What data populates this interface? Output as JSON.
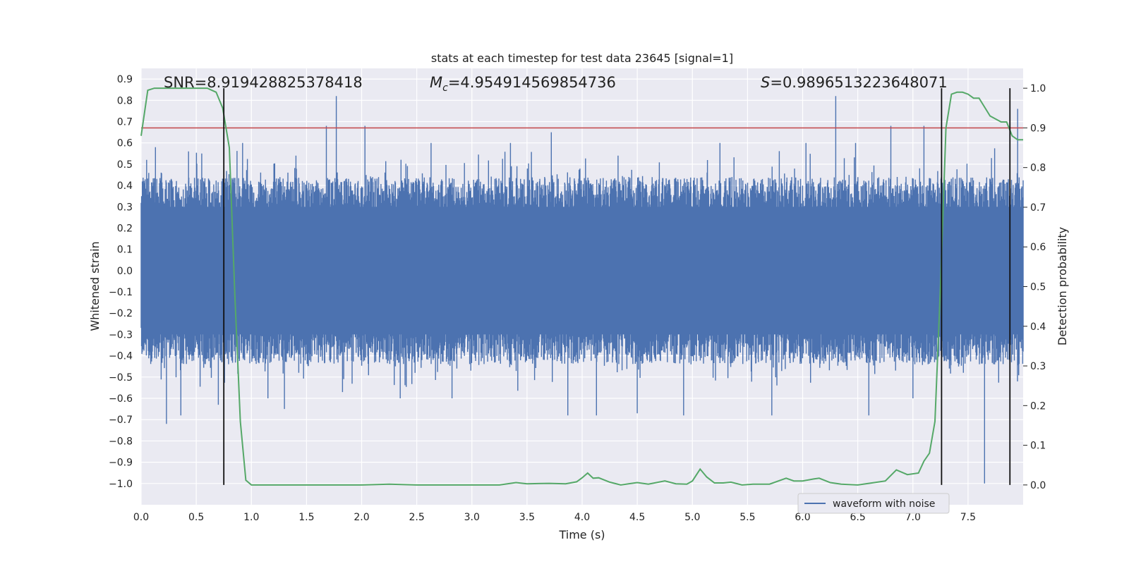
{
  "chart_data": {
    "type": "line",
    "title": "stats at each timestep for test data 23645 [signal=1]",
    "xlabel": "Time (s)",
    "ylabel_left": "Whitened strain",
    "ylabel_right": "Detection probability",
    "xlim": [
      0.0,
      8.0
    ],
    "ylim_left": [
      -1.1,
      0.95
    ],
    "ylim_right": [
      -0.05,
      1.05
    ],
    "x_ticks": [
      "0.0",
      "0.5",
      "1.0",
      "1.5",
      "2.0",
      "2.5",
      "3.0",
      "3.5",
      "4.0",
      "4.5",
      "5.0",
      "5.5",
      "6.0",
      "6.5",
      "7.0",
      "7.5"
    ],
    "x_tick_values": [
      0.0,
      0.5,
      1.0,
      1.5,
      2.0,
      2.5,
      3.0,
      3.5,
      4.0,
      4.5,
      5.0,
      5.5,
      6.0,
      6.5,
      7.0,
      7.5
    ],
    "y_left_ticks": [
      "0.9",
      "0.8",
      "0.7",
      "0.6",
      "0.5",
      "0.4",
      "0.3",
      "0.2",
      "0.1",
      "0.0",
      "−0.1",
      "−0.2",
      "−0.3",
      "−0.4",
      "−0.5",
      "−0.6",
      "−0.7",
      "−0.8",
      "−0.9",
      "−1.0"
    ],
    "y_left_tick_values": [
      0.9,
      0.8,
      0.7,
      0.6,
      0.5,
      0.4,
      0.3,
      0.2,
      0.1,
      0.0,
      -0.1,
      -0.2,
      -0.3,
      -0.4,
      -0.5,
      -0.6,
      -0.7,
      -0.8,
      -0.9,
      -1.0
    ],
    "y_right_ticks": [
      "1.0",
      "0.9",
      "0.8",
      "0.7",
      "0.6",
      "0.5",
      "0.4",
      "0.3",
      "0.2",
      "0.1",
      "0.0"
    ],
    "y_right_tick_values": [
      1.0,
      0.9,
      0.8,
      0.7,
      0.6,
      0.5,
      0.4,
      0.3,
      0.2,
      0.1,
      0.0
    ],
    "grid": true,
    "legend_location": "lower right",
    "annotations": {
      "snr": "SNR=8.919428825378418",
      "mc_symbol": "M",
      "mc_sub": "c",
      "mc_value": "=4.954914569854736",
      "s_symbol": "S",
      "s_value": "=0.9896513223648071"
    },
    "threshold_probability": 0.9,
    "event_lines_time": [
      0.75,
      7.26,
      7.88
    ],
    "series": [
      {
        "name": "waveform with noise",
        "color": "#4c72b0",
        "axis": "left",
        "description_points": "dense noise; typical envelope about ±0.3, peaks up to 0.82 and down to -1.0",
        "spikes": [
          {
            "x": 0.05,
            "y": 0.52
          },
          {
            "x": 0.13,
            "y": 0.58
          },
          {
            "x": 0.23,
            "y": -0.72
          },
          {
            "x": 0.36,
            "y": -0.68
          },
          {
            "x": 0.43,
            "y": 0.56
          },
          {
            "x": 0.55,
            "y": 0.55
          },
          {
            "x": 0.7,
            "y": -0.63
          },
          {
            "x": 0.92,
            "y": 0.6
          },
          {
            "x": 1.15,
            "y": -0.6
          },
          {
            "x": 1.3,
            "y": -0.65
          },
          {
            "x": 1.68,
            "y": 0.68
          },
          {
            "x": 1.77,
            "y": 0.82
          },
          {
            "x": 2.03,
            "y": 0.68
          },
          {
            "x": 2.35,
            "y": -0.6
          },
          {
            "x": 2.63,
            "y": 0.6
          },
          {
            "x": 2.82,
            "y": -0.6
          },
          {
            "x": 3.35,
            "y": 0.6
          },
          {
            "x": 3.72,
            "y": 0.65
          },
          {
            "x": 3.87,
            "y": -0.68
          },
          {
            "x": 4.13,
            "y": -0.68
          },
          {
            "x": 4.5,
            "y": -0.67
          },
          {
            "x": 4.92,
            "y": -0.68
          },
          {
            "x": 5.25,
            "y": 0.6
          },
          {
            "x": 5.72,
            "y": -0.68
          },
          {
            "x": 6.03,
            "y": 0.6
          },
          {
            "x": 6.3,
            "y": 0.82
          },
          {
            "x": 6.48,
            "y": 0.6
          },
          {
            "x": 6.6,
            "y": -0.68
          },
          {
            "x": 6.8,
            "y": 0.68
          },
          {
            "x": 7.0,
            "y": -0.6
          },
          {
            "x": 7.1,
            "y": 0.68
          },
          {
            "x": 7.65,
            "y": -1.0
          },
          {
            "x": 7.95,
            "y": 0.76
          }
        ]
      },
      {
        "name": "",
        "color": "#55a868",
        "axis": "right",
        "x": [
          0.0,
          0.06,
          0.12,
          0.2,
          0.3,
          0.4,
          0.5,
          0.6,
          0.68,
          0.74,
          0.8,
          0.85,
          0.9,
          0.95,
          1.0,
          1.2,
          1.5,
          1.8,
          2.0,
          2.25,
          2.5,
          2.75,
          3.0,
          3.25,
          3.4,
          3.5,
          3.7,
          3.85,
          3.95,
          4.0,
          4.05,
          4.1,
          4.15,
          4.25,
          4.35,
          4.5,
          4.6,
          4.75,
          4.85,
          4.95,
          5.0,
          5.07,
          5.13,
          5.2,
          5.28,
          5.35,
          5.45,
          5.55,
          5.7,
          5.85,
          5.92,
          6.0,
          6.1,
          6.15,
          6.25,
          6.35,
          6.5,
          6.6,
          6.75,
          6.85,
          6.95,
          7.05,
          7.1,
          7.15,
          7.2,
          7.25,
          7.3,
          7.35,
          7.4,
          7.45,
          7.5,
          7.55,
          7.6,
          7.7,
          7.8,
          7.85,
          7.9,
          7.95,
          8.0
        ],
        "y": [
          0.88,
          0.995,
          1.0,
          1.0,
          1.0,
          1.0,
          1.0,
          1.0,
          0.99,
          0.95,
          0.85,
          0.48,
          0.16,
          0.012,
          0.0,
          0.0,
          0.0,
          0.0,
          0.0,
          0.002,
          0.0,
          0.0,
          0.0,
          0.0,
          0.006,
          0.003,
          0.004,
          0.003,
          0.008,
          0.018,
          0.03,
          0.017,
          0.018,
          0.007,
          0.0,
          0.006,
          0.002,
          0.01,
          0.003,
          0.002,
          0.01,
          0.04,
          0.02,
          0.005,
          0.005,
          0.007,
          0.0,
          0.002,
          0.002,
          0.017,
          0.01,
          0.01,
          0.015,
          0.017,
          0.006,
          0.002,
          0.0,
          0.004,
          0.01,
          0.038,
          0.026,
          0.03,
          0.06,
          0.08,
          0.16,
          0.5,
          0.9,
          0.985,
          0.99,
          0.99,
          0.985,
          0.975,
          0.975,
          0.93,
          0.915,
          0.915,
          0.88,
          0.87,
          0.87
        ]
      }
    ]
  }
}
